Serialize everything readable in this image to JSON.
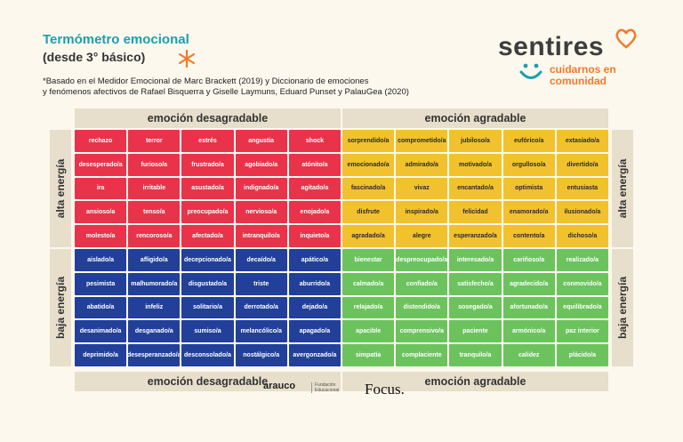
{
  "header": {
    "title": "Termómetro emocional",
    "subtitle": "(desde 3° básico)",
    "note_line1": "*Basado en el Medidor Emocional de Marc Brackett (2019) y Diccionario de emociones",
    "note_line2": "y fenómenos afectivos de Rafael Bisquerra y Giselle Laymuns, Eduard Punset y PalauGea (2020)"
  },
  "brand": {
    "name": "sentires",
    "tag_line1": "cuidarnos en",
    "tag_line2": "comunidad"
  },
  "bands": {
    "unpleasant": "emoción desagradable",
    "pleasant": "emoción agradable",
    "high": "alta energía",
    "low": "baja energía"
  },
  "colors": {
    "red": "#e8334a",
    "yellow": "#f2c12e",
    "blue": "#22409a",
    "green": "#6cc35e",
    "accent_teal": "#1a9fb0",
    "accent_orange": "#f07a2a"
  },
  "grid": {
    "rows": [
      [
        "rechazo",
        "terror",
        "estrés",
        "angustia",
        "shock",
        "sorprendido/a",
        "comprometido/a",
        "jubiloso/a",
        "eufórico/a",
        "extasiado/a"
      ],
      [
        "desesperado/a",
        "furioso/a",
        "frustrado/a",
        "agobiado/a",
        "atónito/a",
        "emocionado/a",
        "admirado/a",
        "motivado/a",
        "orgulloso/a",
        "divertido/a"
      ],
      [
        "ira",
        "irritable",
        "asustado/a",
        "indignado/a",
        "agitado/a",
        "fascinado/a",
        "vivaz",
        "encantado/a",
        "optimista",
        "entusiasta"
      ],
      [
        "ansioso/a",
        "tenso/a",
        "preocupado/a",
        "nervioso/a",
        "enojado/a",
        "disfrute",
        "inspirado/a",
        "felicidad",
        "enamorado/a",
        "ilusionado/a"
      ],
      [
        "molesto/a",
        "rencoroso/a",
        "afectado/a",
        "intranquilo/a",
        "inquieto/a",
        "agradado/a",
        "alegre",
        "esperanzado/a",
        "contento/a",
        "dichoso/a"
      ],
      [
        "aislado/a",
        "afligido/a",
        "decepcionado/a",
        "decaído/a",
        "apático/a",
        "bienestar",
        "despreocupado/a",
        "interesado/a",
        "cariñoso/a",
        "realizado/a"
      ],
      [
        "pesimista",
        "malhumorado/a",
        "disgustado/a",
        "triste",
        "aburrido/a",
        "calmado/a",
        "confiado/a",
        "satisfecho/a",
        "agradecido/a",
        "conmovido/a"
      ],
      [
        "abatido/a",
        "infeliz",
        "solitario/a",
        "derrotado/a",
        "dejado/a",
        "relajado/a",
        "distendido/a",
        "sosegado/a",
        "afortunado/a",
        "equilibrado/a"
      ],
      [
        "desanimado/a",
        "desganado/a",
        "sumiso/a",
        "melancólico/a",
        "apagado/a",
        "apacible",
        "comprensivo/a",
        "paciente",
        "armónico/a",
        "paz interior"
      ],
      [
        "deprimido/a",
        "desesperanzado/a",
        "desconsolado/a",
        "nostálgico/a",
        "avergonzado/a",
        "simpatía",
        "complaciente",
        "tranquilo/a",
        "calidez",
        "plácido/a"
      ]
    ]
  },
  "footer": {
    "arauco": "arauco",
    "fund1": "Fundación",
    "fund2": "Educacional",
    "focus": "Focus."
  }
}
